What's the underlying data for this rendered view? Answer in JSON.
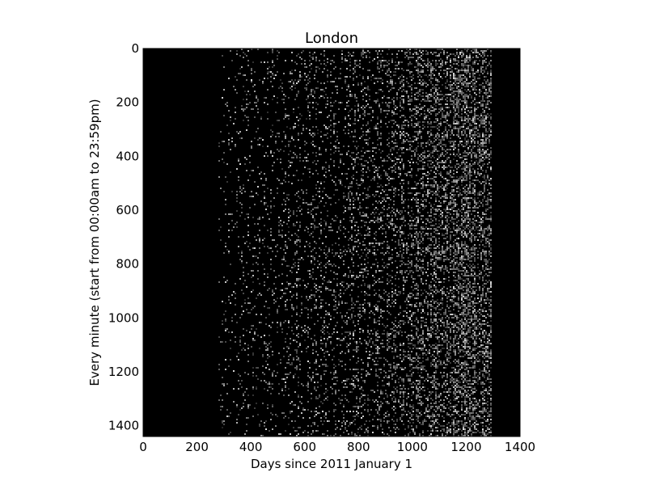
{
  "chart_data": {
    "type": "heatmap",
    "title": "London",
    "xlabel": "Days since 2011 January 1",
    "ylabel": "Every minute (start from 00:00am to 23:59pm)",
    "xlim": [
      0,
      1400
    ],
    "ylim": [
      1440,
      0
    ],
    "x_ticks": [
      0,
      200,
      400,
      600,
      800,
      1000,
      1200,
      1400
    ],
    "y_ticks": [
      0,
      200,
      400,
      600,
      800,
      1000,
      1200,
      1400
    ],
    "grid": false,
    "legend": "none",
    "colormap": "gray",
    "data_day_range": [
      280,
      1290
    ],
    "density_profile": [
      {
        "day": 0,
        "intensity": 0.0
      },
      {
        "day": 270,
        "intensity": 0.0
      },
      {
        "day": 280,
        "intensity": 0.05
      },
      {
        "day": 400,
        "intensity": 0.09
      },
      {
        "day": 600,
        "intensity": 0.14
      },
      {
        "day": 800,
        "intensity": 0.2
      },
      {
        "day": 1000,
        "intensity": 0.3
      },
      {
        "day": 1100,
        "intensity": 0.4
      },
      {
        "day": 1200,
        "intensity": 0.5
      },
      {
        "day": 1270,
        "intensity": 0.55
      },
      {
        "day": 1290,
        "intensity": 0.4
      },
      {
        "day": 1295,
        "intensity": 0.0
      },
      {
        "day": 1400,
        "intensity": 0.0
      }
    ],
    "colors": {
      "background": "#000000",
      "points": "#ffffff",
      "axes": "#000000"
    }
  }
}
